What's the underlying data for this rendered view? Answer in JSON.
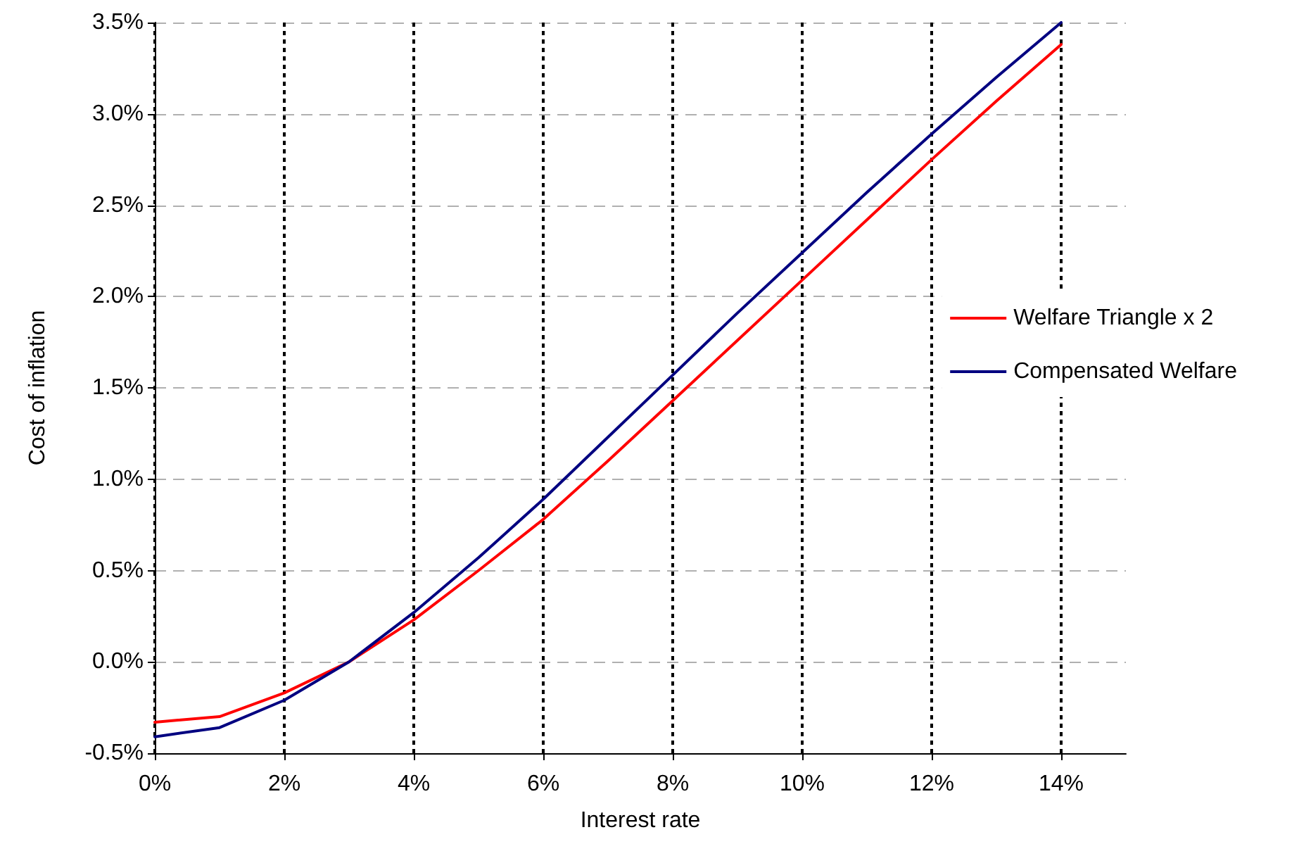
{
  "chart_data": {
    "type": "line",
    "xlabel": "Interest rate",
    "ylabel": "Cost of inflation",
    "x": [
      0,
      1,
      2,
      3,
      4,
      5,
      6,
      7,
      8,
      9,
      10,
      11,
      12,
      13,
      14
    ],
    "series": [
      {
        "name": "Welfare Triangle x 2",
        "color": "#ff0000",
        "values": [
          -0.33,
          -0.3,
          -0.17,
          0.0,
          0.23,
          0.5,
          0.78,
          1.1,
          1.43,
          1.76,
          2.09,
          2.42,
          2.75,
          3.07,
          3.38
        ]
      },
      {
        "name": "Compensated Welfare",
        "color": "#000080",
        "values": [
          -0.41,
          -0.36,
          -0.21,
          0.0,
          0.27,
          0.57,
          0.89,
          1.23,
          1.57,
          1.91,
          2.24,
          2.57,
          2.89,
          3.2,
          3.5
        ]
      }
    ],
    "xlim": [
      0,
      15
    ],
    "xticks": [
      {
        "value": 0,
        "label": "0%"
      },
      {
        "value": 2,
        "label": "2%"
      },
      {
        "value": 4,
        "label": "4%"
      },
      {
        "value": 6,
        "label": "6%"
      },
      {
        "value": 8,
        "label": "8%"
      },
      {
        "value": 10,
        "label": "10%"
      },
      {
        "value": 12,
        "label": "12%"
      },
      {
        "value": 14,
        "label": "14%"
      }
    ],
    "ylim": [
      -0.5,
      3.5
    ],
    "yticks": [
      {
        "value": -0.5,
        "label": "-0.5%"
      },
      {
        "value": 0,
        "label": "0.0%"
      },
      {
        "value": 0.5,
        "label": "0.5%"
      },
      {
        "value": 1,
        "label": "1.0%"
      },
      {
        "value": 1.5,
        "label": "1.5%"
      },
      {
        "value": 2,
        "label": "2.0%"
      },
      {
        "value": 2.5,
        "label": "2.5%"
      },
      {
        "value": 3,
        "label": "3.0%"
      },
      {
        "value": 3.5,
        "label": "3.5%"
      }
    ],
    "grid": true,
    "legend": "right",
    "marker": "none",
    "line_style": "solid"
  }
}
